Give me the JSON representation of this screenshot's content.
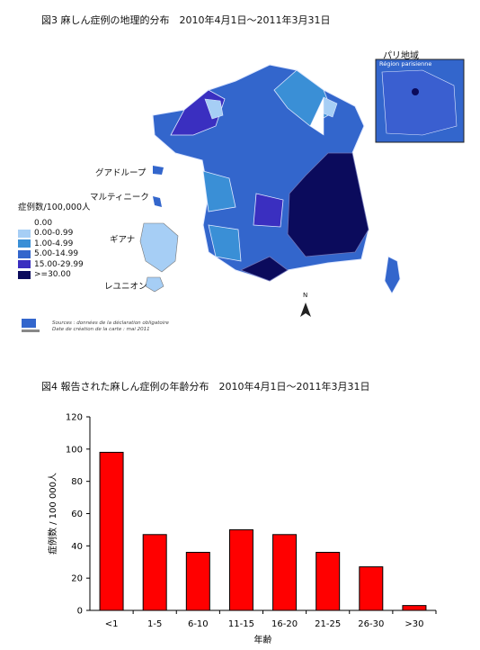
{
  "figure3": {
    "title": "図3 麻しん症例の地理的分布　2010年4月1日～2011年3月31日",
    "inset_title": "パリ地域",
    "inset_label": "Région parisienne",
    "labels": {
      "guadeloupe": "グアドループ",
      "martinique": "マルティニーク",
      "guyane": "ギアナ",
      "reunion": "レユニオン",
      "north": "N"
    },
    "legend": {
      "title": "症例数/100,000人",
      "items": [
        {
          "label": "0.00",
          "color": "#ffffff"
        },
        {
          "label": "0.00-0.99",
          "color": "#a6cef5"
        },
        {
          "label": "1.00-4.99",
          "color": "#3a8fd6"
        },
        {
          "label": "5.00-14.99",
          "color": "#3366cc"
        },
        {
          "label": "15.00-29.99",
          "color": "#3a2fc0"
        },
        {
          "label": ">=30.00",
          "color": "#0b0b5c"
        }
      ]
    },
    "source": {
      "line1": "Sources : données de la déclaration obligatoire",
      "line2": "Date de création de la carte : mai 2011"
    }
  },
  "figure4": {
    "title": "図4 報告された麻しん症例の年齢分布　2010年4月1日～2011年3月31日"
  },
  "chart_data": {
    "type": "bar",
    "categories": [
      "<1",
      "1-5",
      "6-10",
      "11-15",
      "16-20",
      "21-25",
      "26-30",
      ">30"
    ],
    "values": [
      98,
      47,
      36,
      50,
      47,
      36,
      27,
      3
    ],
    "xlabel": "年齢",
    "ylabel": "症例数 / 100 000人",
    "ylim": [
      0,
      120
    ],
    "yticks": [
      0,
      20,
      40,
      60,
      80,
      100,
      120
    ],
    "bar_color": "#ff0000",
    "grid": false,
    "legend": "none"
  }
}
